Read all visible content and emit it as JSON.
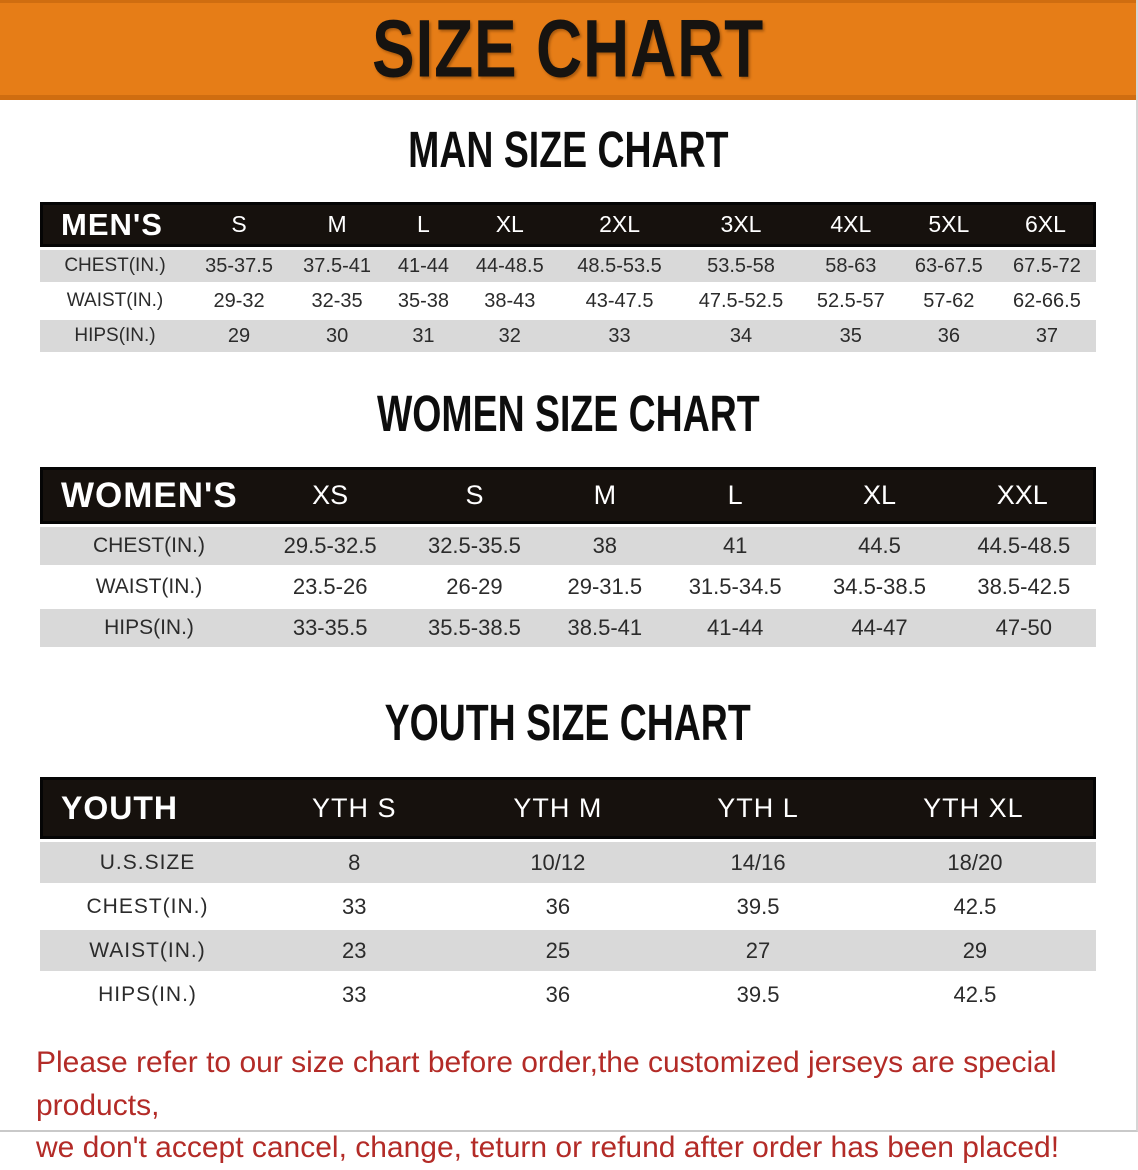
{
  "banner": {
    "title": "SIZE CHART"
  },
  "colors": {
    "banner_bg": "#e67d17",
    "header_bg": "#16110d",
    "row_gray": "#d9d9d9",
    "disclaimer_red": "#b32b27"
  },
  "tables": [
    {
      "heading": "MAN SIZE CHART",
      "label": "MEN'S",
      "columns": [
        "S",
        "M",
        "L",
        "XL",
        "2XL",
        "3XL",
        "4XL",
        "5XL",
        "6XL"
      ],
      "rows": [
        {
          "label": "CHEST(IN.)",
          "values": [
            "35-37.5",
            "37.5-41",
            "41-44",
            "44-48.5",
            "48.5-53.5",
            "53.5-58",
            "58-63",
            "63-67.5",
            "67.5-72"
          ]
        },
        {
          "label": "WAIST(IN.)",
          "values": [
            "29-32",
            "32-35",
            "35-38",
            "38-43",
            "43-47.5",
            "47.5-52.5",
            "52.5-57",
            "57-62",
            "62-66.5"
          ]
        },
        {
          "label": "HIPS(IN.)",
          "values": [
            "29",
            "30",
            "31",
            "32",
            "33",
            "34",
            "35",
            "36",
            "37"
          ]
        }
      ]
    },
    {
      "heading": "WOMEN SIZE CHART",
      "label": "WOMEN'S",
      "columns": [
        "XS",
        "S",
        "M",
        "L",
        "XL",
        "XXL"
      ],
      "rows": [
        {
          "label": "CHEST(IN.)",
          "values": [
            "29.5-32.5",
            "32.5-35.5",
            "38",
            "41",
            "44.5",
            "44.5-48.5"
          ]
        },
        {
          "label": "WAIST(IN.)",
          "values": [
            "23.5-26",
            "26-29",
            "29-31.5",
            "31.5-34.5",
            "34.5-38.5",
            "38.5-42.5"
          ]
        },
        {
          "label": "HIPS(IN.)",
          "values": [
            "33-35.5",
            "35.5-38.5",
            "38.5-41",
            "41-44",
            "44-47",
            "47-50"
          ]
        }
      ]
    },
    {
      "heading": "YOUTH SIZE CHART",
      "label": "YOUTH",
      "columns": [
        "YTH S",
        "YTH M",
        "YTH L",
        "YTH XL"
      ],
      "rows": [
        {
          "label": "U.S.SIZE",
          "values": [
            "8",
            "10/12",
            "14/16",
            "18/20"
          ]
        },
        {
          "label": "CHEST(IN.)",
          "values": [
            "33",
            "36",
            "39.5",
            "42.5"
          ]
        },
        {
          "label": "WAIST(IN.)",
          "values": [
            "23",
            "25",
            "27",
            "29"
          ]
        },
        {
          "label": "HIPS(IN.)",
          "values": [
            "33",
            "36",
            "39.5",
            "42.5"
          ]
        }
      ]
    }
  ],
  "disclaimer": {
    "line1": "Please refer to our size chart before order,the customized jerseys are special products,",
    "line2": "we don't accept cancel, change, teturn or refund after order has been placed!"
  }
}
